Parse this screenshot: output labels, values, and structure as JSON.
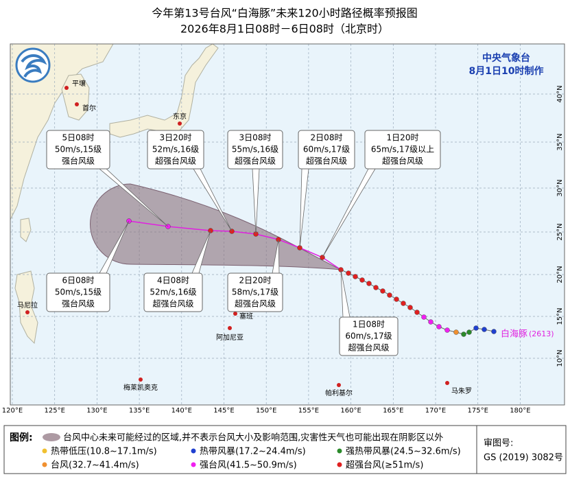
{
  "header": {
    "title": "今年第13号台风“白海豚”未来120小时路径概率预报图",
    "subtitle": "2026年8月1日08时－6日08时（北京时）"
  },
  "issuer": {
    "agency": "中央气象台",
    "time": "8月1日10时制作"
  },
  "map": {
    "lon_labels": [
      "120°E",
      "125°E",
      "130°E",
      "135°E",
      "140°E",
      "145°E",
      "150°E",
      "155°E",
      "160°E",
      "165°E",
      "170°E",
      "175°E",
      "180°E"
    ],
    "lat_labels": [
      "40°N",
      "35°N",
      "30°N",
      "25°N",
      "20°N",
      "15°N",
      "10°N"
    ],
    "places": [
      "平壤",
      "首尔",
      "东京",
      "马尼拉",
      "塞班",
      "阿加尼亚",
      "梅莱凯奥克",
      "帕利基尔",
      "马朱罗"
    ],
    "typhoon_name": "白海豚",
    "typhoon_id": "(2613)"
  },
  "callouts": [
    {
      "time": "5日08时",
      "intensity": "50m/s,15级",
      "grade": "强台风级"
    },
    {
      "time": "3日20时",
      "intensity": "52m/s,16级",
      "grade": "超强台风级"
    },
    {
      "time": "3日08时",
      "intensity": "55m/s,16级",
      "grade": "超强台风级"
    },
    {
      "time": "2日08时",
      "intensity": "60m/s,17级",
      "grade": "超强台风级"
    },
    {
      "time": "1日20时",
      "intensity": "65m/s,17级以上",
      "grade": "超强台风级"
    },
    {
      "time": "6日08时",
      "intensity": "50m/s,15级",
      "grade": "强台风级"
    },
    {
      "time": "4日08时",
      "intensity": "52m/s,16级",
      "grade": "超强台风级"
    },
    {
      "time": "2日20时",
      "intensity": "58m/s,17级",
      "grade": "超强台风级"
    },
    {
      "time": "1日08时",
      "intensity": "60m/s,17级",
      "grade": "超强台风级"
    }
  ],
  "legend": {
    "title": "图例:",
    "cone": "台风中心未来可能经过的区域,并不表示台风大小及影响范围,灾害性天气也可能出现在阴影区以外",
    "items": [
      {
        "label": "热带低压(10.8~17.1m/s)",
        "color": "#f0c030"
      },
      {
        "label": "热带风暴(17.2~24.4m/s)",
        "color": "#2040d0"
      },
      {
        "label": "强热带风暴(24.5~32.6m/s)",
        "color": "#2a8a2a"
      },
      {
        "label": "台风(32.7~41.4m/s)",
        "color": "#f09030"
      },
      {
        "label": "强台风(41.5~50.9m/s)",
        "color": "#f020f0"
      },
      {
        "label": "超强台风(≥51m/s)",
        "color": "#e02020"
      }
    ]
  },
  "approval": {
    "label": "审图号:",
    "number": "GS (2019) 3082号"
  }
}
